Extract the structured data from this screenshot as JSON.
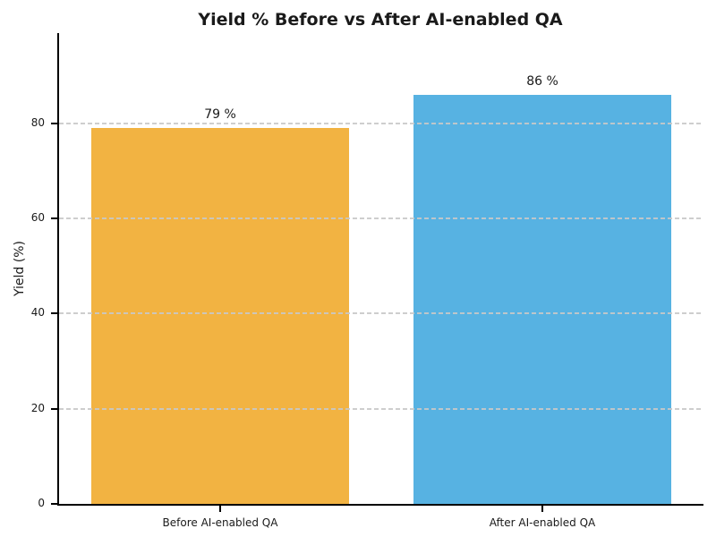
{
  "chart_data": {
    "type": "bar",
    "title": "Yield % Before vs After AI-enabled QA",
    "categories": [
      "Before AI-enabled QA",
      "After AI-enabled QA"
    ],
    "values": [
      79,
      86
    ],
    "value_labels": [
      "79 %",
      "86 %"
    ],
    "bar_colors": [
      "#F2B342",
      "#57B2E2"
    ],
    "ylabel": "Yield (%)",
    "xlabel": "",
    "ylim": [
      0,
      99
    ],
    "yticks": [
      0,
      20,
      40,
      60,
      80
    ],
    "grid": "horizontal dashed, drawn above bars",
    "legend": "none",
    "grid_color": "#c8c8c8",
    "text_color": "#1a1a1a",
    "spine_color": "#000000",
    "background_color": "#ffffff"
  }
}
